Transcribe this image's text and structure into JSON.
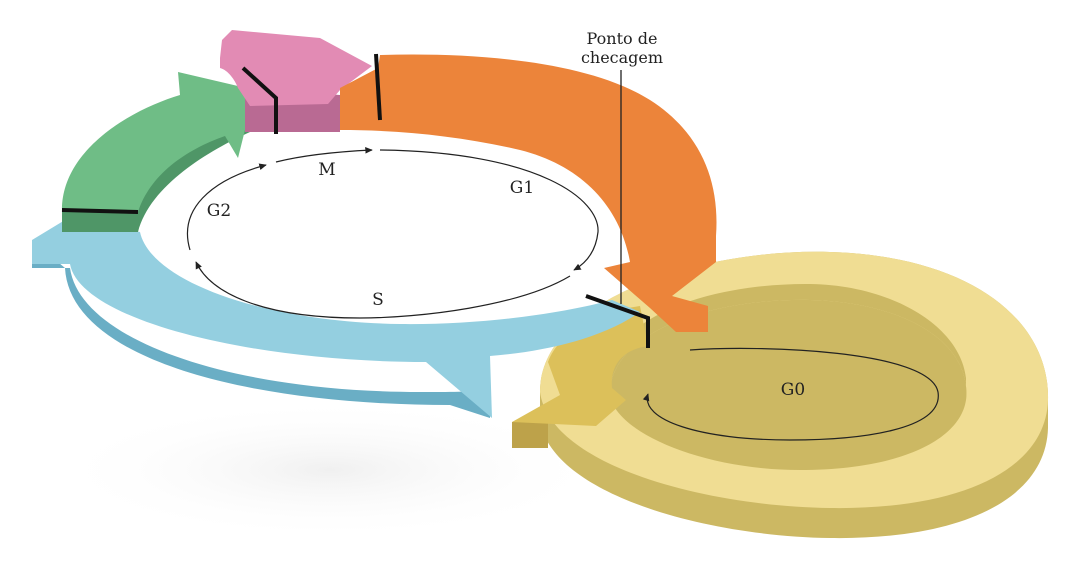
{
  "diagram": {
    "phases": {
      "m": "M",
      "g1": "G1",
      "g2": "G2",
      "s": "S",
      "g0": "G0"
    },
    "checkpoint": {
      "line1": "Ponto de",
      "line2": "checagem"
    },
    "colors": {
      "m_top": "#e28bb4",
      "m_side": "#b96a93",
      "g1_top": "#ec843a",
      "g1_side": "#c66a2b",
      "g2_top": "#6fbd86",
      "g2_side": "#4f9667",
      "s_top": "#94cfe0",
      "s_side": "#6aaec5",
      "g0_top": "#f0dd93",
      "g0_side": "#ccb863",
      "g0_arrow_top": "#dcc05a",
      "g0_arrow_side": "#bda24a",
      "boundary": "#111111",
      "inner_arrows": "#222222"
    }
  }
}
